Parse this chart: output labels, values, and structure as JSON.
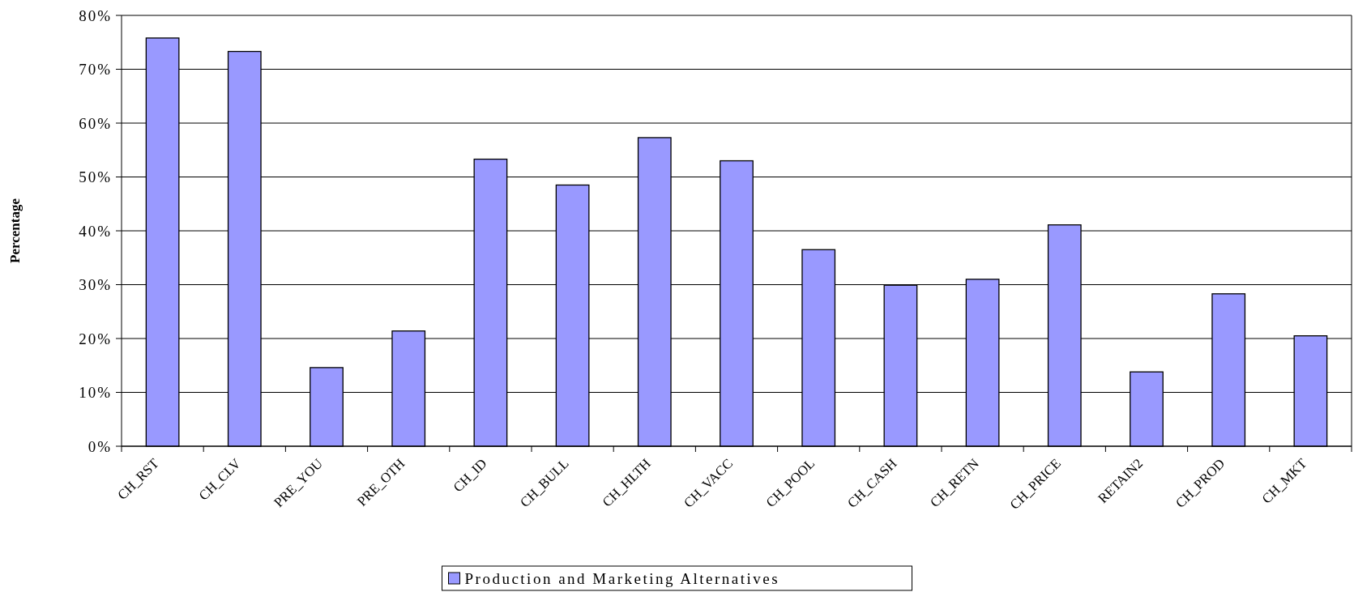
{
  "chart_data": {
    "type": "bar",
    "ylabel": "Percentage",
    "categories": [
      "CH_RST",
      "CH_CLV",
      "PRE_YOU",
      "PRE_OTH",
      "CH_ID",
      "CH_BULL",
      "CH_HLTH",
      "CH_VACC",
      "CH_POOL",
      "CH_CASH",
      "CH_RETN",
      "CH_PRICE",
      "RETAIN2",
      "CH_PROD",
      "CH_MKT"
    ],
    "series": [
      {
        "name": "Production and Marketing Alternatives",
        "color": "#9999ff",
        "values": [
          75.8,
          73.3,
          14.6,
          21.4,
          53.3,
          48.5,
          57.3,
          53.0,
          36.5,
          29.9,
          31.0,
          41.1,
          13.8,
          28.3,
          20.5
        ]
      }
    ],
    "ylim": [
      0,
      80
    ],
    "yticks": [
      {
        "value": 0,
        "label": "0%"
      },
      {
        "value": 10,
        "label": "10%"
      },
      {
        "value": 20,
        "label": "20%"
      },
      {
        "value": 30,
        "label": "30%"
      },
      {
        "value": 40,
        "label": "40%"
      },
      {
        "value": 50,
        "label": "50%"
      },
      {
        "value": 60,
        "label": "60%"
      },
      {
        "value": 70,
        "label": "70%"
      },
      {
        "value": 80,
        "label": "80%"
      }
    ],
    "grid": "y",
    "legend": "bottom"
  }
}
